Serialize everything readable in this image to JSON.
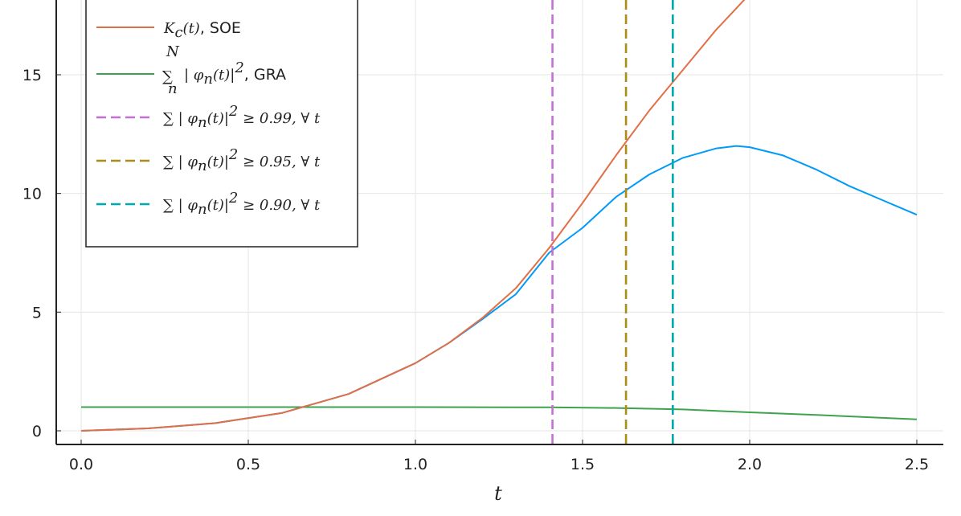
{
  "chart_data": {
    "type": "line",
    "xlabel": "t",
    "ylabel": "",
    "xlim": [
      -0.07,
      2.58
    ],
    "ylim": [
      -0.6,
      18.3
    ],
    "x_ticks": [
      0.0,
      0.5,
      1.0,
      1.5,
      2.0,
      2.5
    ],
    "x_tick_labels": [
      "0.0",
      "0.5",
      "1.0",
      "1.5",
      "2.0",
      "2.5"
    ],
    "y_ticks": [
      0,
      5,
      10,
      15
    ],
    "y_tick_labels": [
      "0",
      "5",
      "10",
      "15"
    ],
    "grid": true,
    "legend_position": "top-left",
    "series": [
      {
        "label_prefix": "",
        "color": "#009AFA",
        "style": "solid",
        "points": [
          [
            0.0,
            0.0
          ],
          [
            0.2,
            0.1
          ],
          [
            0.4,
            0.32
          ],
          [
            0.6,
            0.75
          ],
          [
            0.8,
            1.55
          ],
          [
            1.0,
            2.85
          ],
          [
            1.1,
            3.7
          ],
          [
            1.2,
            4.7
          ],
          [
            1.3,
            5.75
          ],
          [
            1.4,
            7.5
          ],
          [
            1.5,
            8.55
          ],
          [
            1.6,
            9.85
          ],
          [
            1.7,
            10.8
          ],
          [
            1.8,
            11.5
          ],
          [
            1.9,
            11.9
          ],
          [
            1.96,
            12.0
          ],
          [
            2.0,
            11.95
          ],
          [
            2.1,
            11.6
          ],
          [
            2.2,
            11.0
          ],
          [
            2.3,
            10.3
          ],
          [
            2.4,
            9.7
          ],
          [
            2.5,
            9.1
          ]
        ]
      },
      {
        "label_math": "K_c(t)",
        "label_suffix": ", SOE",
        "color": "#E26F46",
        "style": "solid",
        "points": [
          [
            0.0,
            0.0
          ],
          [
            0.2,
            0.1
          ],
          [
            0.4,
            0.32
          ],
          [
            0.6,
            0.75
          ],
          [
            0.8,
            1.55
          ],
          [
            1.0,
            2.85
          ],
          [
            1.1,
            3.7
          ],
          [
            1.2,
            4.75
          ],
          [
            1.3,
            6.0
          ],
          [
            1.4,
            7.7
          ],
          [
            1.5,
            9.6
          ],
          [
            1.6,
            11.6
          ],
          [
            1.7,
            13.5
          ],
          [
            1.8,
            15.2
          ],
          [
            1.9,
            16.9
          ],
          [
            2.0,
            18.4
          ]
        ]
      },
      {
        "label_math": "∑ⁿᴺ |φₙ(t)|²",
        "label_suffix": ", GRA",
        "color": "#3DA44D",
        "style": "solid",
        "points": [
          [
            0.0,
            1.0
          ],
          [
            0.5,
            1.0
          ],
          [
            1.0,
            1.0
          ],
          [
            1.4,
            0.99
          ],
          [
            1.6,
            0.96
          ],
          [
            1.8,
            0.9
          ],
          [
            2.0,
            0.78
          ],
          [
            2.2,
            0.67
          ],
          [
            2.5,
            0.48
          ]
        ]
      },
      {
        "label_math": "∑|φₙ(t)|² ≥ 0.99, ∀ t",
        "color": "#C271D2",
        "style": "dashed",
        "x": 1.41
      },
      {
        "label_math": "∑|φₙ(t)|² ≥ 0.95, ∀ t",
        "color": "#AC8D18",
        "style": "dashed",
        "x": 1.63
      },
      {
        "label_math": "∑|φₙ(t)|² ≥ 0.90, ∀ t",
        "color": "#00A9AD",
        "style": "dashed",
        "x": 1.77
      }
    ]
  }
}
